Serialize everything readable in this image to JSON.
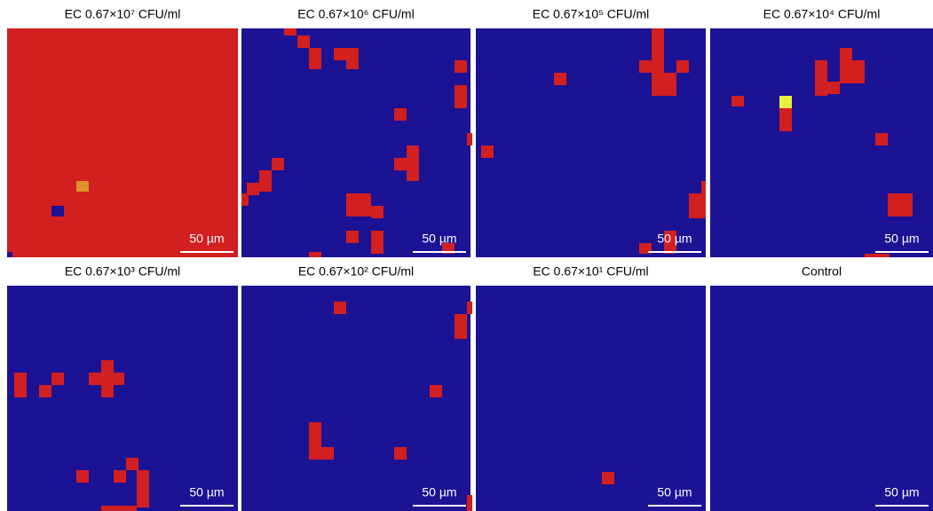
{
  "panels": [
    {
      "title": "EC 0.67×10⁷ CFU/ml",
      "scale_bar": "50 µm"
    },
    {
      "title": "EC 0.67×10⁶ CFU/ml",
      "scale_bar": "50 µm"
    },
    {
      "title": "EC 0.67×10⁵ CFU/ml",
      "scale_bar": "50 µm"
    },
    {
      "title": "EC 0.67×10⁴ CFU/ml",
      "scale_bar": "50 µm"
    },
    {
      "title": "EC 0.67×10³ CFU/ml",
      "scale_bar": "50 µm"
    },
    {
      "title": "EC 0.67×10² CFU/ml",
      "scale_bar": "50 µm"
    },
    {
      "title": "EC 0.67×10¹ CFU/ml",
      "scale_bar": "50 µm"
    },
    {
      "title": "Control",
      "scale_bar": "50 µm"
    }
  ]
}
